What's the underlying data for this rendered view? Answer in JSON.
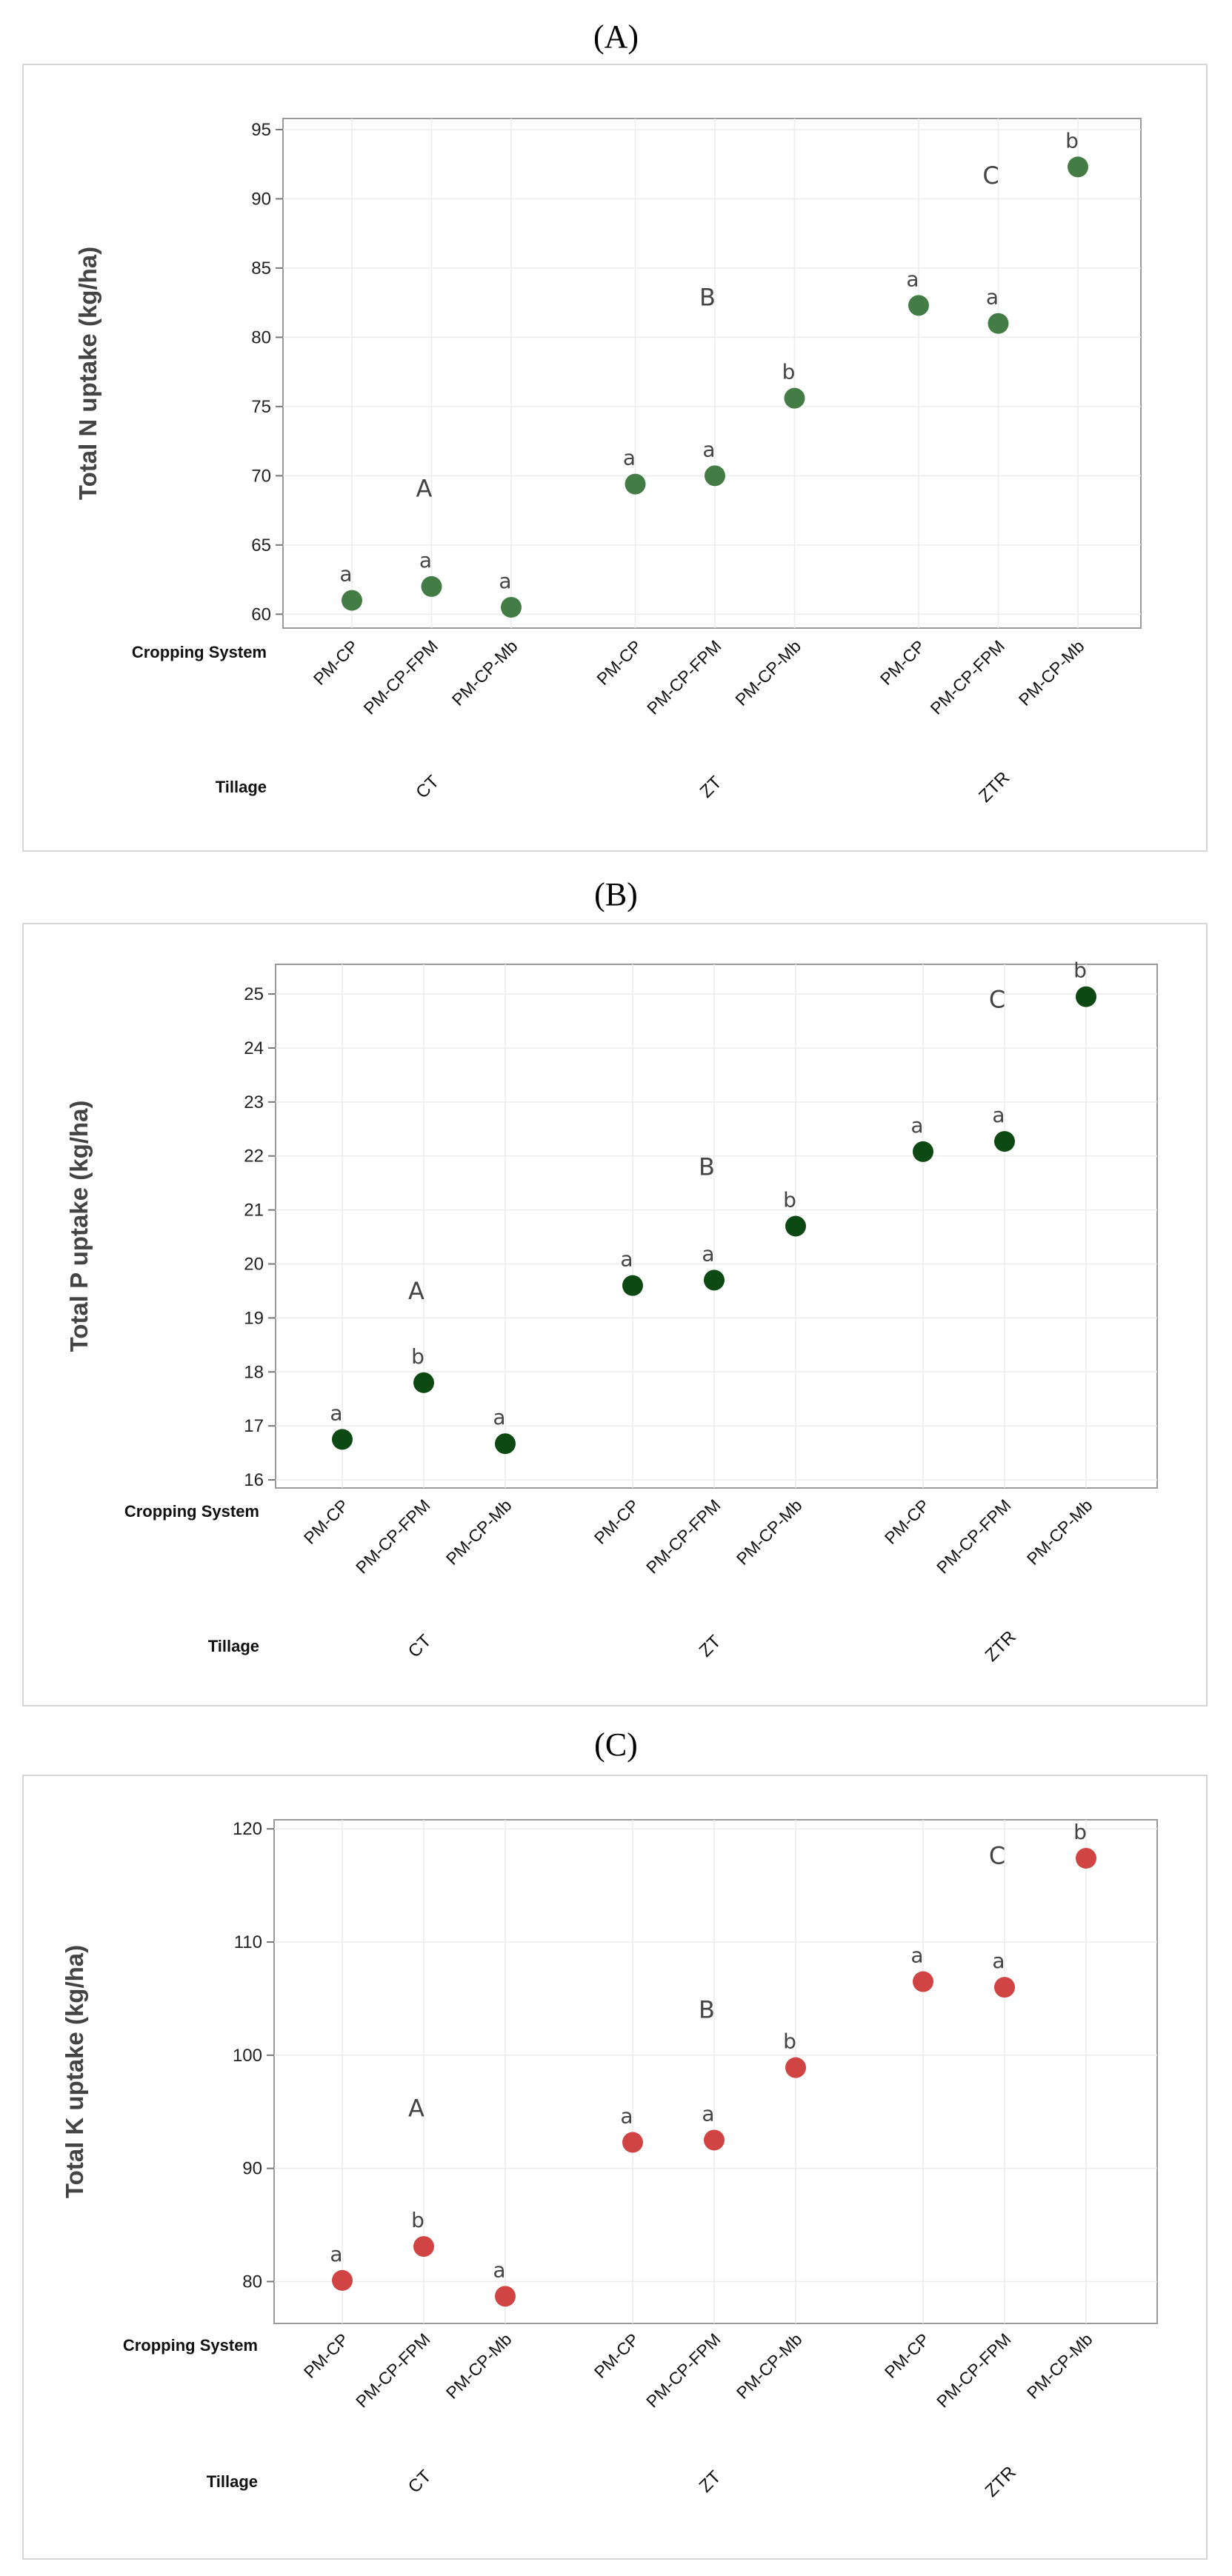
{
  "chart_data": [
    {
      "panel": "(A)",
      "type": "scatter",
      "ylabel": "Total N uptake (kg/ha)",
      "ylim": [
        59,
        95.8
      ],
      "yticks": [
        60,
        65,
        70,
        75,
        80,
        85,
        90,
        95
      ],
      "row_labels": {
        "cropping": "Cropping System",
        "tillage": "Tillage"
      },
      "tillage": [
        "CT",
        "ZT",
        "ZTR"
      ],
      "categories": [
        "PM-CP",
        "PM-CP-FPM",
        "PM-CP-Mb",
        "PM-CP",
        "PM-CP-FPM",
        "PM-CP-Mb",
        "PM-CP",
        "PM-CP-FPM",
        "PM-CP-Mb"
      ],
      "values": [
        61.0,
        62.0,
        60.5,
        69.4,
        70.0,
        75.6,
        82.3,
        81.0,
        92.3
      ],
      "letters": [
        "a",
        "a",
        "a",
        "a",
        "a",
        "b",
        "a",
        "a",
        "b"
      ],
      "group_letters": [
        {
          "text": "A",
          "x": 1,
          "y": 68.5
        },
        {
          "text": "B",
          "x": 4,
          "y": 82.3
        },
        {
          "text": "C",
          "x": 7,
          "y": 91.1
        }
      ],
      "color": "#437c44",
      "grid": true
    },
    {
      "panel": "(B)",
      "type": "scatter",
      "ylabel": "Total P uptake (kg/ha)",
      "ylim": [
        15.85,
        25.55
      ],
      "yticks": [
        16,
        17,
        18,
        19,
        20,
        21,
        22,
        23,
        24,
        25
      ],
      "row_labels": {
        "cropping": "Cropping System",
        "tillage": "Tillage"
      },
      "tillage": [
        "CT",
        "ZT",
        "ZTR"
      ],
      "categories": [
        "PM-CP",
        "PM-CP-FPM",
        "PM-CP-Mb",
        "PM-CP",
        "PM-CP-FPM",
        "PM-CP-Mb",
        "PM-CP",
        "PM-CP-FPM",
        "PM-CP-Mb"
      ],
      "values": [
        16.75,
        17.8,
        16.67,
        19.6,
        19.7,
        20.7,
        22.08,
        22.27,
        24.95
      ],
      "letters": [
        "a",
        "b",
        "a",
        "a",
        "a",
        "b",
        "a",
        "a",
        "b"
      ],
      "group_letters": [
        {
          "text": "A",
          "x": 1,
          "y": 19.35
        },
        {
          "text": "B",
          "x": 4,
          "y": 21.65
        },
        {
          "text": "C",
          "x": 7,
          "y": 24.75
        }
      ],
      "color": "#0d4a13",
      "grid": true
    },
    {
      "panel": "(C)",
      "type": "scatter",
      "ylabel": "Total K uptake (kg/ha)",
      "ylim": [
        76.3,
        120.8
      ],
      "yticks": [
        80,
        90,
        100,
        110,
        120
      ],
      "row_labels": {
        "cropping": "Cropping System",
        "tillage": "Tillage"
      },
      "tillage": [
        "CT",
        "ZT",
        "ZTR"
      ],
      "categories": [
        "PM-CP",
        "PM-CP-FPM",
        "PM-CP-Mb",
        "PM-CP",
        "PM-CP-FPM",
        "PM-CP-Mb",
        "PM-CP",
        "PM-CP-FPM",
        "PM-CP-Mb"
      ],
      "values": [
        80.1,
        83.1,
        78.7,
        92.3,
        92.5,
        98.9,
        106.5,
        106.0,
        117.4
      ],
      "letters": [
        "a",
        "b",
        "a",
        "a",
        "a",
        "b",
        "a",
        "a",
        "b"
      ],
      "group_letters": [
        {
          "text": "A",
          "x": 1,
          "y": 94.6
        },
        {
          "text": "B",
          "x": 4,
          "y": 103.3
        },
        {
          "text": "C",
          "x": 7,
          "y": 116.9
        }
      ],
      "color": "#d04444",
      "grid": true
    }
  ]
}
